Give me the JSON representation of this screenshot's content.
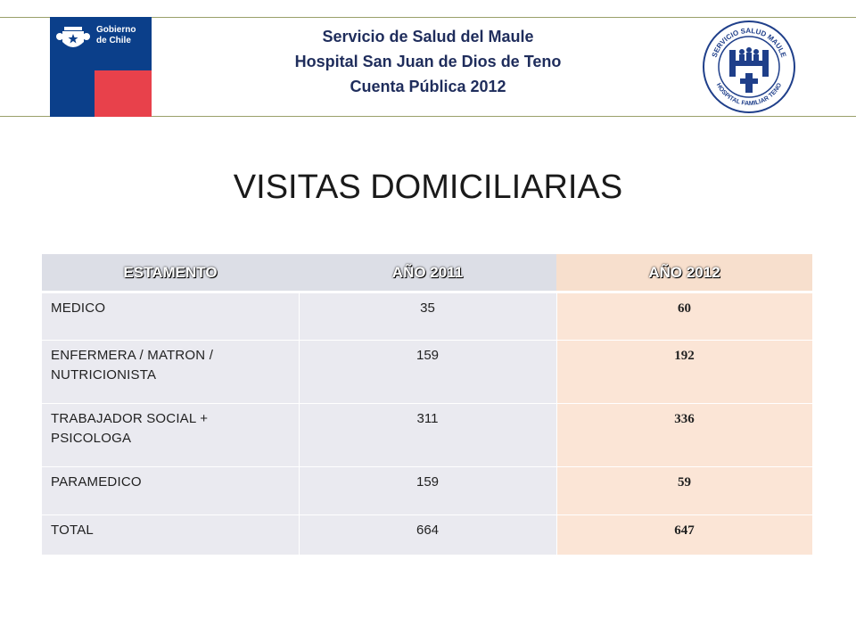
{
  "header": {
    "gobierno_logo_text": [
      "Gobierno",
      "de Chile"
    ],
    "lines": [
      "Servicio de Salud del Maule",
      "Hospital San Juan de Dios de Teno",
      "Cuenta Pública 2012"
    ],
    "hospital_logo_text": [
      "SERVICIO SALUD MAULE",
      "HOSPITAL FAMILIAR TENO"
    ]
  },
  "title": "VISITAS DOMICILIARIAS",
  "table": {
    "columns": [
      "ESTAMENTO",
      "AÑO 2011",
      "AÑO 2012"
    ],
    "rows": [
      {
        "name": "MEDICO",
        "y2011": "35",
        "y2012": "60"
      },
      {
        "name": "ENFERMERA  / MATRON / NUTRICIONISTA",
        "y2011": "159",
        "y2012": "192"
      },
      {
        "name": "TRABAJADOR  SOCIAL  + PSICOLOGA",
        "y2011": "311",
        "y2012": "336"
      },
      {
        "name": "PARAMEDICO",
        "y2011": "159",
        "y2012": "59"
      },
      {
        "name": "TOTAL",
        "y2011": "664",
        "y2012": "647"
      }
    ]
  },
  "colors": {
    "header_text": "#1f2d5c",
    "gobierno_blue": "#0b3f8a",
    "gobierno_red": "#e8414b",
    "table_gray": "#eaeaf0",
    "table_peach": "#fbe5d6"
  }
}
